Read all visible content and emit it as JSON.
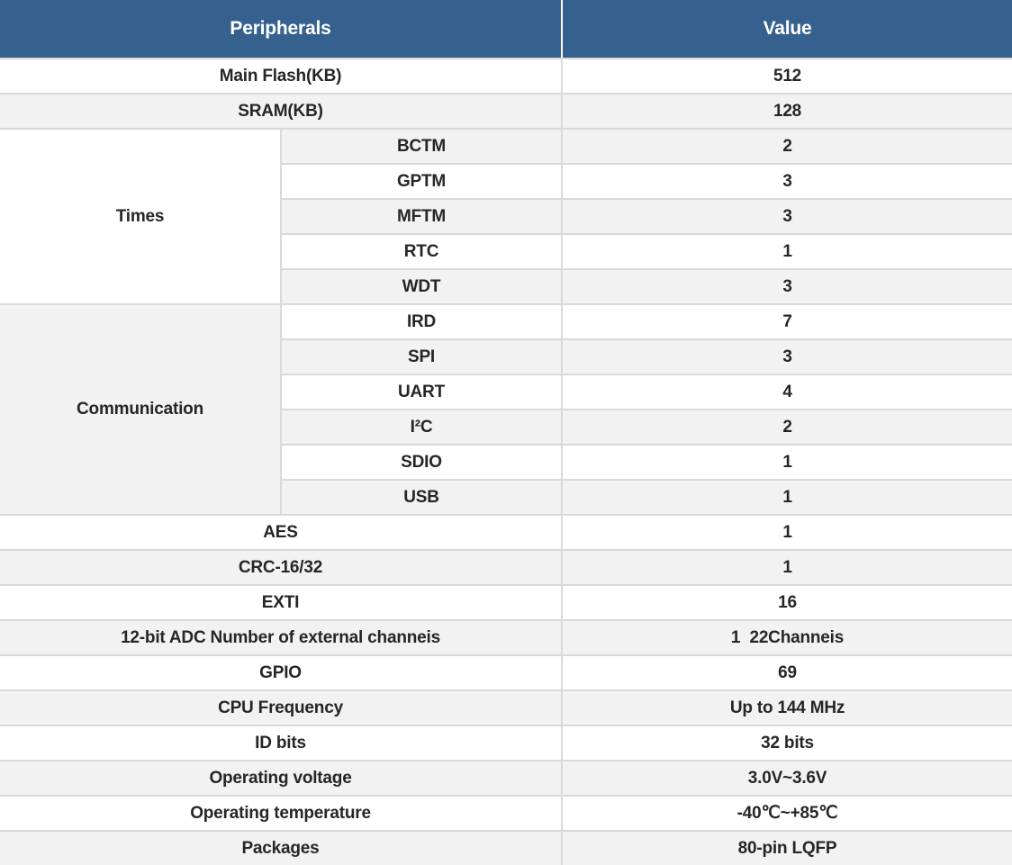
{
  "colors": {
    "header_bg": "#36618f",
    "header_text": "#ffffff",
    "band_bg": "#f2f2f2",
    "row_bg": "#ffffff",
    "border": "#d9d9d9",
    "text": "#262626"
  },
  "header": {
    "peripherals": "Peripherals",
    "value": "Value"
  },
  "rows": {
    "main_flash": {
      "label": "Main Flash(KB)",
      "value": "512"
    },
    "sram": {
      "label": "SRAM(KB)",
      "value": "128"
    },
    "aes": {
      "label": "AES",
      "value": "1"
    },
    "crc": {
      "label": "CRC-16/32",
      "value": "1"
    },
    "exti": {
      "label": "EXTI",
      "value": "16"
    },
    "adc": {
      "label": "12-bit ADC Number of external channeis",
      "value": "1  22Channeis"
    },
    "gpio": {
      "label": "GPIO",
      "value": "69"
    },
    "cpu_freq": {
      "label": "CPU Frequency",
      "value": "Up to 144 MHz"
    },
    "id_bits": {
      "label": "ID bits",
      "value": "32 bits"
    },
    "op_voltage": {
      "label": "Operating voltage",
      "value": "3.0V~3.6V"
    },
    "op_temperature": {
      "label": "Operating temperature",
      "value": "-40℃~+85℃"
    },
    "packages": {
      "label": "Packages",
      "value": "80-pin LQFP"
    }
  },
  "groups": {
    "times": {
      "label": "Times",
      "items": [
        {
          "name": "BCTM",
          "value": "2"
        },
        {
          "name": "GPTM",
          "value": "3"
        },
        {
          "name": "MFTM",
          "value": "3"
        },
        {
          "name": "RTC",
          "value": "1"
        },
        {
          "name": "WDT",
          "value": "3"
        }
      ]
    },
    "communication": {
      "label": "Communication",
      "items": [
        {
          "name": "IRD",
          "value": "7"
        },
        {
          "name": "SPI",
          "value": "3"
        },
        {
          "name": "UART",
          "value": "4"
        },
        {
          "name": "I²C",
          "value": "2"
        },
        {
          "name": "SDIO",
          "value": "1"
        },
        {
          "name": "USB",
          "value": "1"
        }
      ]
    }
  }
}
